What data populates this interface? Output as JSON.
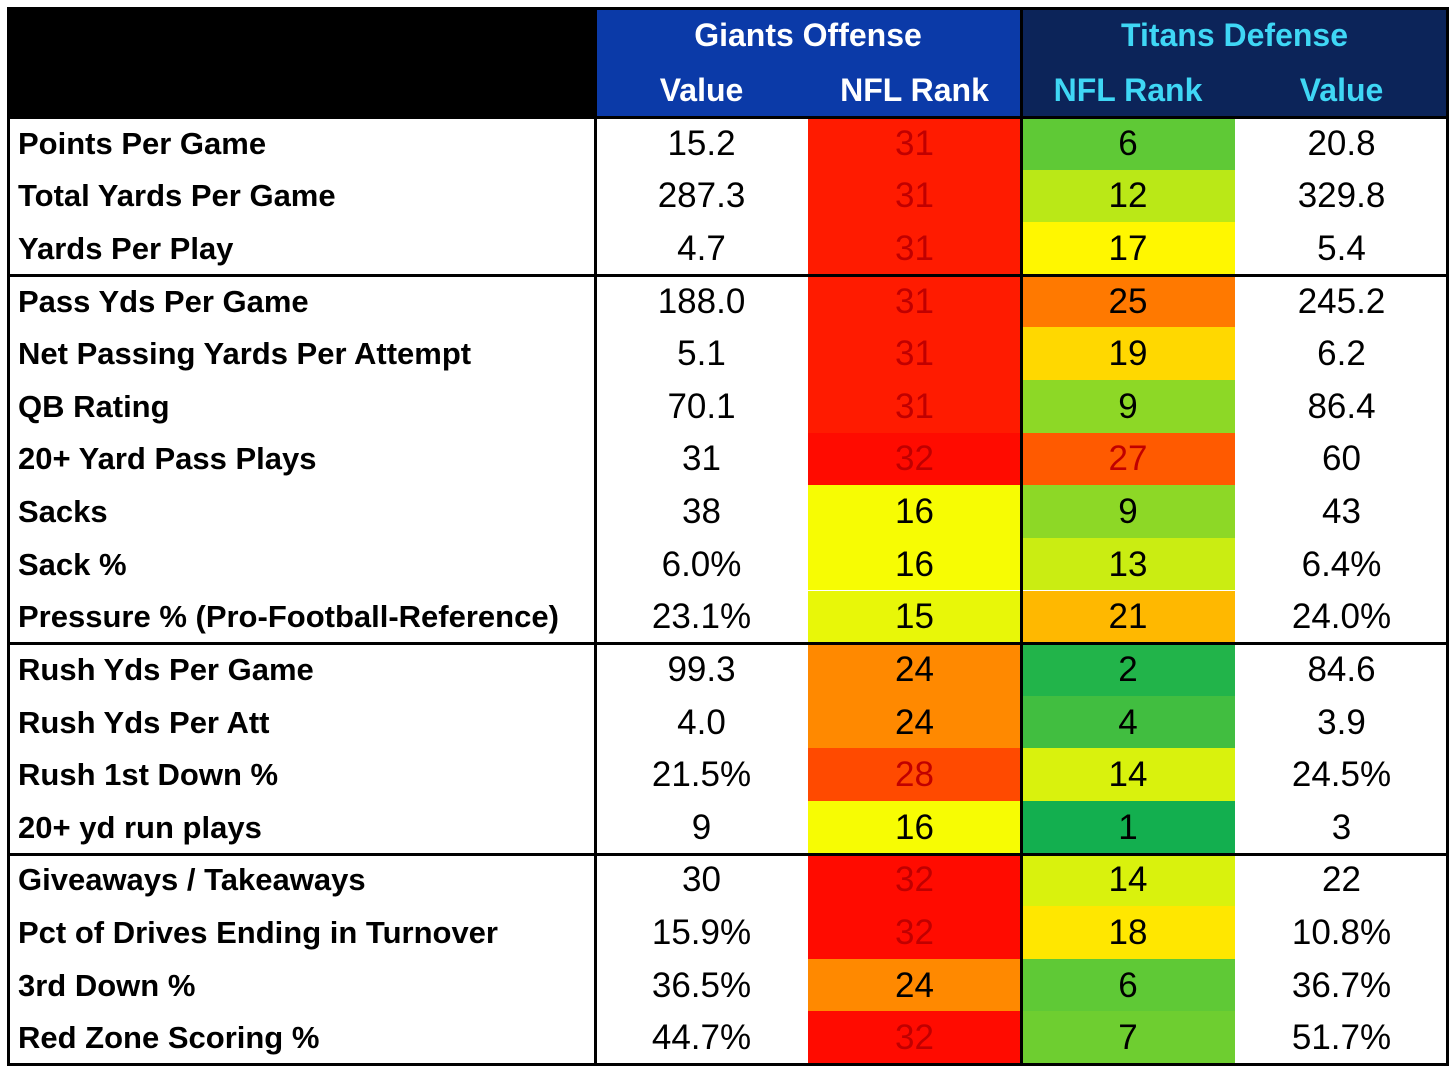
{
  "colors": {
    "header_black": "#000000",
    "giants_header_bg": "#0B3AA8",
    "titans_header_bg": "#0C2459",
    "giants_header_text": "#FFFFFF",
    "titans_header_text": "#3FD7F5",
    "rank_text_red": "#C00000",
    "rank_text_dark": "#000000"
  },
  "header": {
    "corner": "",
    "giants_group": "Giants Offense",
    "titans_group": "Titans Defense",
    "giants_value_label": "Value",
    "giants_rank_label": "NFL Rank",
    "titans_rank_label": "NFL Rank",
    "titans_value_label": "Value"
  },
  "chart_data": {
    "type": "table",
    "title": "",
    "columns": [
      "",
      "Giants Offense Value",
      "Giants Offense NFL Rank",
      "Titans Defense NFL Rank",
      "Titans Defense Value"
    ],
    "color_scale": "NFL rank 1 = green, 16 = yellow, 32 = red",
    "rows": [
      {
        "stat": "Points Per Game",
        "giants_value": "15.2",
        "giants_rank": 31,
        "titans_rank": 6,
        "titans_value": "20.8"
      },
      {
        "stat": "Total Yards Per Game",
        "giants_value": "287.3",
        "giants_rank": 31,
        "titans_rank": 12,
        "titans_value": "329.8"
      },
      {
        "stat": "Yards Per Play",
        "giants_value": "4.7",
        "giants_rank": 31,
        "titans_rank": 17,
        "titans_value": "5.4"
      },
      {
        "stat": "Pass Yds Per Game",
        "giants_value": "188.0",
        "giants_rank": 31,
        "titans_rank": 25,
        "titans_value": "245.2"
      },
      {
        "stat": "Net Passing Yards Per Attempt",
        "giants_value": "5.1",
        "giants_rank": 31,
        "titans_rank": 19,
        "titans_value": "6.2"
      },
      {
        "stat": "QB Rating",
        "giants_value": "70.1",
        "giants_rank": 31,
        "titans_rank": 9,
        "titans_value": "86.4"
      },
      {
        "stat": "20+ Yard Pass Plays",
        "giants_value": "31",
        "giants_rank": 32,
        "titans_rank": 27,
        "titans_value": "60"
      },
      {
        "stat": "Sacks",
        "giants_value": "38",
        "giants_rank": 16,
        "titans_rank": 9,
        "titans_value": "43"
      },
      {
        "stat": "Sack %",
        "giants_value": "6.0%",
        "giants_rank": 16,
        "titans_rank": 13,
        "titans_value": "6.4%"
      },
      {
        "stat": "Pressure % (Pro-Football-Reference)",
        "giants_value": "23.1%",
        "giants_rank": 15,
        "titans_rank": 21,
        "titans_value": "24.0%"
      },
      {
        "stat": "Rush Yds Per Game",
        "giants_value": "99.3",
        "giants_rank": 24,
        "titans_rank": 2,
        "titans_value": "84.6"
      },
      {
        "stat": "Rush Yds Per Att",
        "giants_value": "4.0",
        "giants_rank": 24,
        "titans_rank": 4,
        "titans_value": "3.9"
      },
      {
        "stat": "Rush 1st Down %",
        "giants_value": "21.5%",
        "giants_rank": 28,
        "titans_rank": 14,
        "titans_value": "24.5%"
      },
      {
        "stat": "20+ yd run plays",
        "giants_value": "9",
        "giants_rank": 16,
        "titans_rank": 1,
        "titans_value": "3"
      },
      {
        "stat": "Giveaways / Takeaways",
        "giants_value": "30",
        "giants_rank": 32,
        "titans_rank": 14,
        "titans_value": "22"
      },
      {
        "stat": "Pct of Drives Ending in Turnover",
        "giants_value": "15.9%",
        "giants_rank": 32,
        "titans_rank": 18,
        "titans_value": "10.8%"
      },
      {
        "stat": "3rd Down %",
        "giants_value": "36.5%",
        "giants_rank": 24,
        "titans_rank": 6,
        "titans_value": "36.7%"
      },
      {
        "stat": "Red Zone Scoring %",
        "giants_value": "44.7%",
        "giants_rank": 32,
        "titans_rank": 7,
        "titans_value": "51.7%"
      }
    ],
    "row_groups": [
      [
        0,
        2
      ],
      [
        3,
        9
      ],
      [
        10,
        13
      ],
      [
        14,
        17
      ]
    ]
  }
}
